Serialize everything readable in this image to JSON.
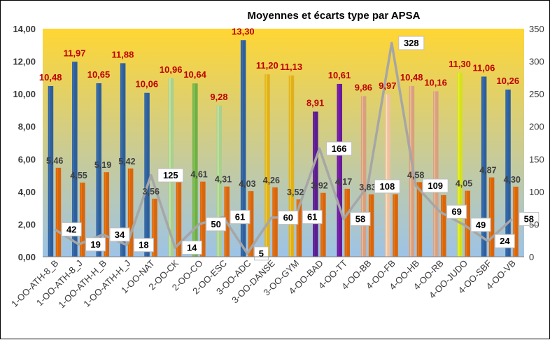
{
  "chart_data": {
    "type": "bar",
    "title": "Moyennes et écarts type par APSA",
    "categories": [
      "1-OO-ATH-8_B",
      "1-OO-ATH-8_J",
      "1-OO-ATH-H_B",
      "1-OO-ATH-H_J",
      "1-OO-NAT",
      "2-OO-CK",
      "2-OO-CO",
      "2-OO-ESC",
      "3-OO-ADC",
      "3-OO-DANSE",
      "3-OO-GYM",
      "4-OO-BAD",
      "4-OO-TT",
      "4-OO-BB",
      "4-OO-FB",
      "4-OO-HB",
      "4-OO-RB",
      "4-OO-JUDO",
      "4-OO-SBF",
      "4-OO-VB"
    ],
    "series": [
      {
        "role": "moyenne",
        "axis": "left",
        "kind": "bar",
        "values": [
          10.48,
          11.97,
          10.65,
          11.88,
          10.06,
          10.96,
          10.64,
          9.28,
          13.3,
          11.2,
          11.13,
          8.91,
          10.61,
          9.86,
          9.97,
          10.48,
          10.16,
          11.3,
          11.06,
          10.26
        ],
        "labels": [
          "10,48",
          "11,97",
          "10,65",
          "11,88",
          "10,06",
          "10,96",
          "10,64",
          "9,28",
          "13,30",
          "11,20",
          "11,13",
          "8,91",
          "10,61",
          "9,86",
          "9,97",
          "10,48",
          "10,16",
          "11,30",
          "11,06",
          "10,26"
        ],
        "colors": [
          "#2f5f9a",
          "#2f5f9a",
          "#2f5f9a",
          "#2f5f9a",
          "#2f5f9a",
          "#a9d08e",
          "#70ad47",
          "#a9d08e",
          "#2f5f9a",
          "#e0b020",
          "#e0b020",
          "#5a1e8c",
          "#6a1b9a",
          "#d9a080",
          "#f0c0a0",
          "#d9a080",
          "#d9a080",
          "#d4e020",
          "#2f5f9a",
          "#2f5f9a"
        ]
      },
      {
        "role": "ecart-type",
        "axis": "left",
        "kind": "bar",
        "values": [
          5.46,
          4.55,
          5.19,
          5.42,
          3.56,
          4.61,
          4.61,
          4.31,
          4.03,
          4.26,
          3.52,
          3.92,
          4.17,
          3.83,
          3.84,
          4.58,
          3.78,
          4.05,
          4.87,
          4.3
        ],
        "labels": [
          "5,46",
          "4,55",
          "5,19",
          "5,42",
          "3,56",
          "4,61",
          "4,61",
          "4,31",
          "4,03",
          "4,26",
          "3,52",
          "3,92",
          "4,17",
          "3,83",
          "3,84",
          "4,58",
          "3,78",
          "4,05",
          "4,87",
          "4,30"
        ],
        "color": "#d9650c"
      },
      {
        "role": "effectif",
        "axis": "right",
        "kind": "line",
        "values": [
          42,
          19,
          34,
          18,
          125,
          14,
          50,
          61,
          5,
          60,
          61,
          166,
          58,
          108,
          328,
          109,
          69,
          49,
          24,
          58
        ],
        "color": "#a6a6a6"
      }
    ],
    "ylim": [
      0,
      14
    ],
    "yticks": [
      "0,00",
      "2,00",
      "4,00",
      "6,00",
      "8,00",
      "10,00",
      "12,00",
      "14,00"
    ],
    "y2lim": [
      0,
      350
    ],
    "y2ticks": [
      "0",
      "50",
      "100",
      "150",
      "200",
      "250",
      "300",
      "350"
    ],
    "background_gradient": [
      "#ffd633",
      "#9dc3e6"
    ],
    "grid": false,
    "legend": "none"
  }
}
